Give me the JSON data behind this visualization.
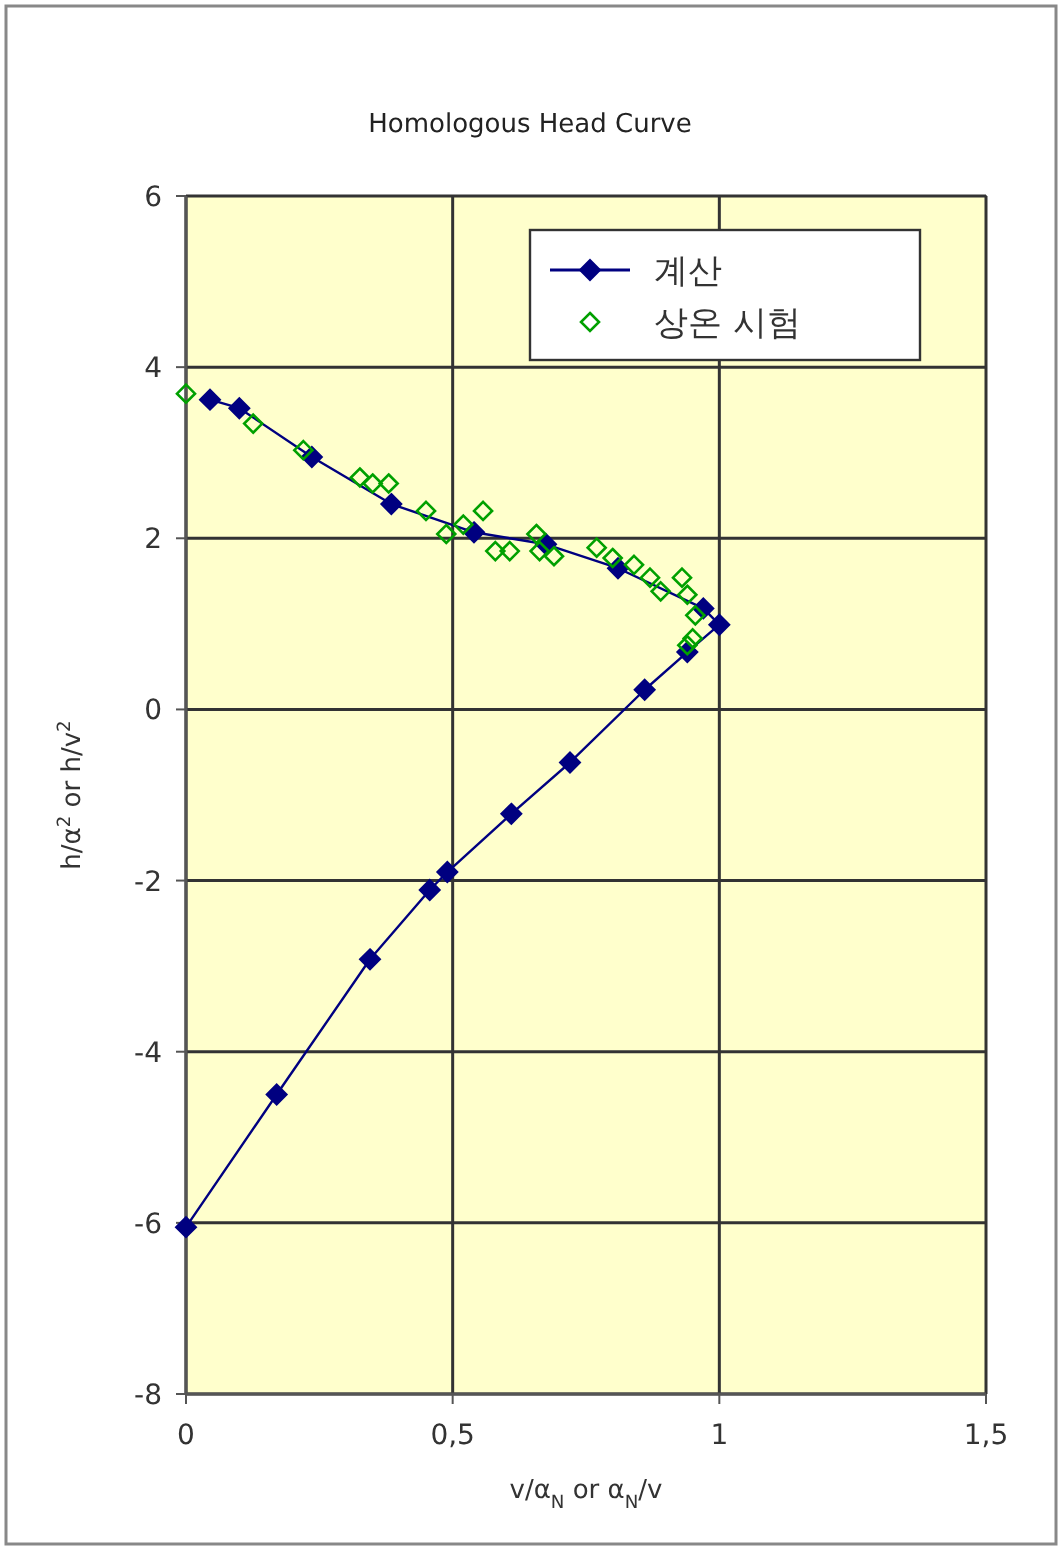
{
  "chart_data": {
    "type": "line",
    "title": "Homologous Head Curve",
    "xlabel": "v/α$_{N}$ or α$_{N}$/v",
    "ylabel": "h/α$^{2}$ or h/v$^{2}$",
    "xlim": [
      0,
      1.5
    ],
    "xticks": [
      0,
      {
        "value": 0.5,
        "label": "0,5"
      },
      1,
      {
        "value": 1.5,
        "label": "1,5"
      }
    ],
    "ylim": [
      -8,
      6
    ],
    "yticks": [
      -8,
      -6,
      -4,
      -2,
      0,
      2,
      4,
      6
    ],
    "grid": true,
    "legend": "top right",
    "marker": "diamond",
    "series": [
      {
        "name": "계산",
        "color": "#000080",
        "x": [
          0,
          0.17,
          0.345,
          0.457,
          0.49,
          0.61,
          0.72,
          0.86,
          0.94,
          1.0,
          0.97,
          0.81,
          0.675,
          0.54,
          0.385,
          0.236,
          0.1,
          0.045
        ],
        "values": [
          -6.05,
          -4.5,
          -2.92,
          -2.11,
          -1.9,
          -1.22,
          -0.62,
          0.23,
          0.67,
          0.99,
          1.18,
          1.65,
          1.93,
          2.07,
          2.4,
          2.95,
          3.52,
          3.62
        ]
      },
      {
        "name": "상온 시험",
        "type": "scatter",
        "color": "#00a000",
        "x": [
          0,
          0.126,
          0.22,
          0.326,
          0.35,
          0.38,
          0.45,
          0.488,
          0.52,
          0.557,
          0.58,
          0.607,
          0.657,
          0.663,
          0.69,
          0.77,
          0.8,
          0.84,
          0.87,
          0.89,
          0.93,
          0.94,
          0.955,
          0.95,
          0.94
        ],
        "values": [
          3.69,
          3.34,
          3.03,
          2.71,
          2.64,
          2.64,
          2.32,
          2.05,
          2.16,
          2.32,
          1.85,
          1.85,
          2.05,
          1.85,
          1.79,
          1.89,
          1.77,
          1.69,
          1.54,
          1.38,
          1.54,
          1.34,
          1.1,
          0.83,
          0.75
        ]
      }
    ]
  }
}
